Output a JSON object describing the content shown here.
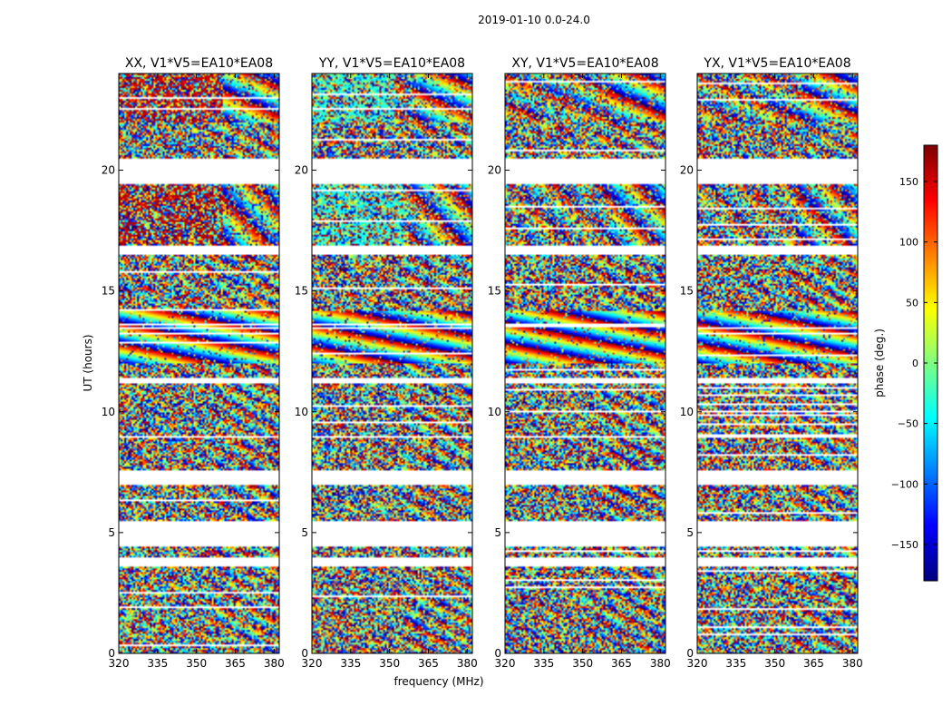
{
  "figure": {
    "suptitle": "2019-01-10 0.0-24.0"
  },
  "chart_data": {
    "type": "heatmap",
    "suptitle": "2019-01-10 0.0-24.0",
    "xlabel": "frequency (MHz)",
    "ylabel": "UT (hours)",
    "xlim": [
      320,
      382
    ],
    "ylim": [
      0,
      24
    ],
    "x_ticks": [
      "320",
      "335",
      "350",
      "365",
      "380"
    ],
    "x_tick_values": [
      320,
      335,
      350,
      365,
      380
    ],
    "y_ticks": [
      "0",
      "5",
      "10",
      "15",
      "20"
    ],
    "y_tick_values": [
      0,
      5,
      10,
      15,
      20
    ],
    "panels": [
      {
        "title": "XX, V1*V5=EA10*EA08",
        "pol": "XX"
      },
      {
        "title": "YY, V1*V5=EA10*EA08",
        "pol": "YY"
      },
      {
        "title": "XY, V1*V5=EA10*EA08",
        "pol": "XY"
      },
      {
        "title": "YX, V1*V5=EA10*EA08",
        "pol": "YX"
      }
    ],
    "colorbar": {
      "label": "phase (deg.)",
      "range": [
        -180,
        180
      ],
      "ticks": [
        "150",
        "100",
        "50",
        "0",
        "−50",
        "−100",
        "−150"
      ],
      "tick_values": [
        150,
        100,
        50,
        0,
        -50,
        -100,
        -150
      ],
      "colormap": "jet"
    },
    "data_gaps_hours": [
      [
        3.6,
        4.0
      ],
      [
        4.4,
        5.5
      ],
      [
        7.0,
        7.6
      ],
      [
        8.9,
        9.0
      ],
      [
        11.2,
        11.4
      ],
      [
        16.5,
        16.9
      ],
      [
        19.4,
        20.5
      ]
    ]
  }
}
